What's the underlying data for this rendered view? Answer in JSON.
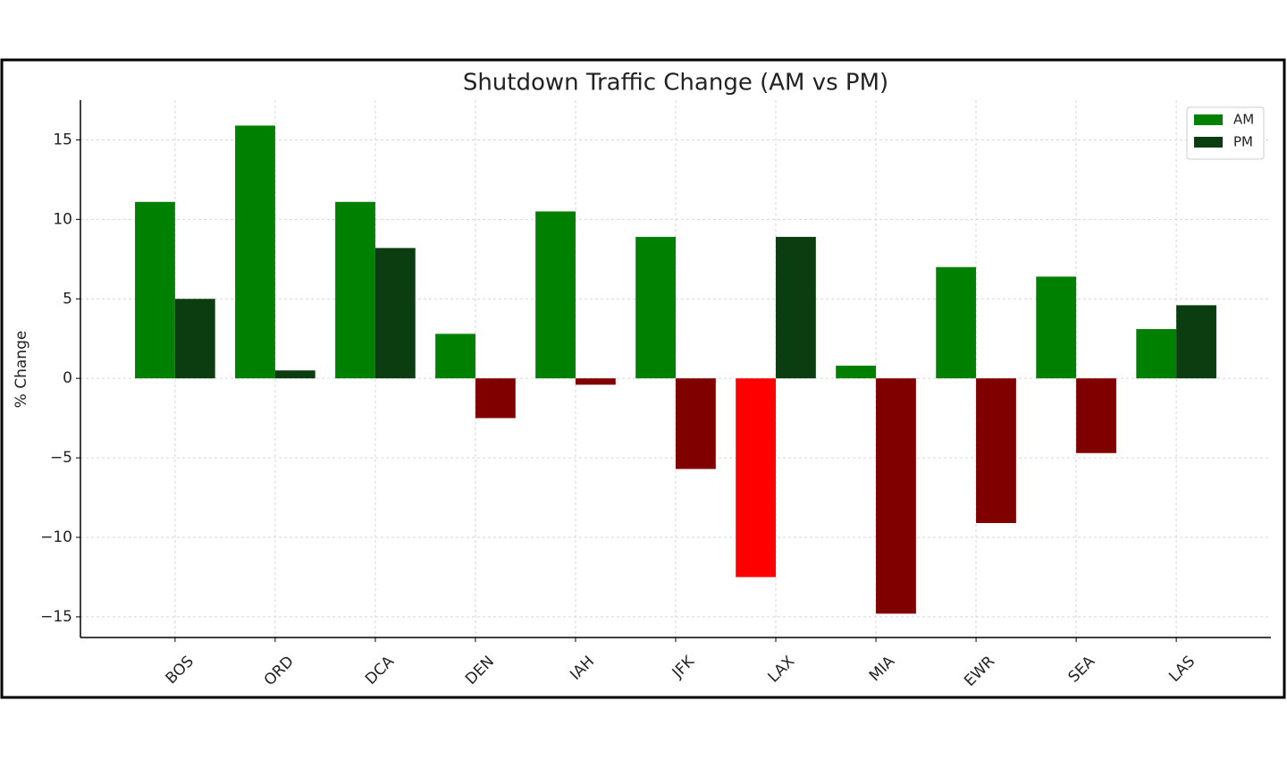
{
  "chart_data": {
    "type": "bar",
    "title": "Shutdown Traffic Change (AM vs PM)",
    "ylabel": "% Change",
    "categories": [
      "BOS",
      "ORD",
      "DCA",
      "DEN",
      "IAH",
      "JFK",
      "LAX",
      "MIA",
      "EWR",
      "SEA",
      "LAS"
    ],
    "series": [
      {
        "name": "AM",
        "color": "#008000",
        "values": [
          11.1,
          15.9,
          11.1,
          2.8,
          10.5,
          8.9,
          -12.5,
          0.8,
          7.0,
          6.4,
          3.1
        ],
        "colors": [
          "#008000",
          "#008000",
          "#008000",
          "#008000",
          "#008000",
          "#008000",
          "#ff0000",
          "#008000",
          "#008000",
          "#008000",
          "#008000"
        ]
      },
      {
        "name": "PM",
        "color": "#0b3d10",
        "values": [
          5.0,
          0.5,
          8.2,
          -2.5,
          -0.4,
          -5.7,
          8.9,
          -14.8,
          -9.1,
          -4.7,
          4.6
        ],
        "colors": [
          "#0b3d10",
          "#0b3d10",
          "#0b3d10",
          "#800000",
          "#800000",
          "#800000",
          "#0b3d10",
          "#800000",
          "#800000",
          "#800000",
          "#0b3d10"
        ]
      }
    ],
    "ylim": [
      -16.3,
      17.5
    ],
    "yticks": [
      {
        "value": -15,
        "label": "−15"
      },
      {
        "value": -10,
        "label": "−10"
      },
      {
        "value": -5,
        "label": "−5"
      },
      0,
      5,
      10,
      15
    ],
    "grid": true,
    "legend": "upper right"
  }
}
